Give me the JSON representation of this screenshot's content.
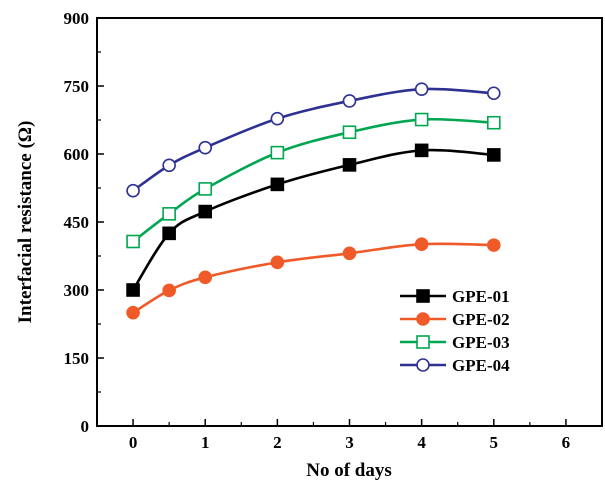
{
  "chart_data": {
    "type": "line",
    "xlabel": "No of days",
    "ylabel": "Interfacial resistance (Ω)",
    "xlim": [
      -0.5,
      6.5
    ],
    "ylim": [
      0,
      900
    ],
    "xticks": [
      0,
      1,
      2,
      3,
      4,
      5,
      6
    ],
    "yticks": [
      0,
      150,
      300,
      450,
      600,
      750,
      900
    ],
    "grid": false,
    "legend_position": "lower-right",
    "x": [
      0,
      0.5,
      1,
      2,
      3,
      4,
      5
    ],
    "series": [
      {
        "name": "GPE-01",
        "color": "#000000",
        "marker": "filled-square",
        "values": [
          300,
          425,
          473,
          533,
          576,
          608,
          598
        ]
      },
      {
        "name": "GPE-02",
        "color": "#f05a28",
        "marker": "filled-circle",
        "values": [
          250,
          299,
          328,
          361,
          381,
          401,
          399
        ]
      },
      {
        "name": "GPE-03",
        "color": "#00a650",
        "marker": "open-square",
        "values": [
          407,
          468,
          523,
          603,
          648,
          676,
          669
        ]
      },
      {
        "name": "GPE-04",
        "color": "#2e3192",
        "marker": "open-circle",
        "values": [
          519,
          575,
          614,
          678,
          717,
          743,
          734
        ]
      }
    ]
  }
}
